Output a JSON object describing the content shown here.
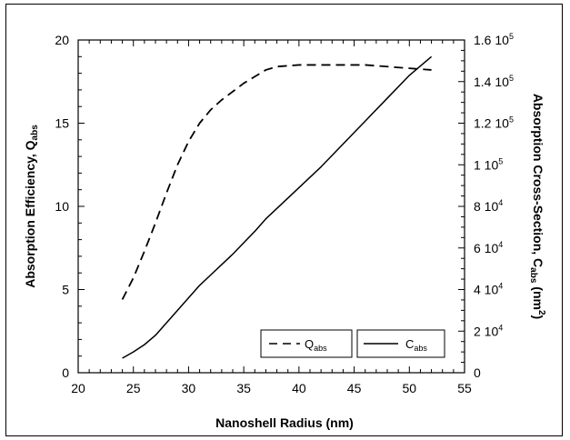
{
  "chart_data": {
    "type": "line",
    "x_axis": {
      "label": "Nanoshell Radius (nm)",
      "range": [
        20,
        55
      ],
      "ticks": [
        "20",
        "25",
        "30",
        "35",
        "40",
        "45",
        "50",
        "55"
      ]
    },
    "y_axis_left": {
      "label_main": "Absorption Efficiency, Q",
      "label_sub": "abs",
      "range": [
        0,
        20
      ],
      "ticks": [
        "0",
        "5",
        "10",
        "15",
        "20"
      ]
    },
    "y_axis_right": {
      "label_main": "Absorption Cross-Section, C",
      "label_sub": "abs",
      "label_unit_open": " (nm",
      "label_unit_sup": "2",
      "label_unit_close": ")",
      "range": [
        0,
        160000
      ],
      "ticks": [
        {
          "mantissa": "0",
          "exp": ""
        },
        {
          "mantissa": "2 10",
          "exp": "4"
        },
        {
          "mantissa": "4 10",
          "exp": "4"
        },
        {
          "mantissa": "6 10",
          "exp": "4"
        },
        {
          "mantissa": "8 10",
          "exp": "4"
        },
        {
          "mantissa": "1 10",
          "exp": "5"
        },
        {
          "mantissa": "1.2 10",
          "exp": "5"
        },
        {
          "mantissa": "1.4 10",
          "exp": "5"
        },
        {
          "mantissa": "1.6 10",
          "exp": "5"
        }
      ]
    },
    "series": [
      {
        "name_main": "Q",
        "name_sub": "abs",
        "axis": "left",
        "style": "dashed",
        "x": [
          24,
          25,
          26,
          27,
          28,
          29,
          30,
          31,
          32,
          33,
          34,
          35,
          36,
          37,
          38,
          40,
          42,
          44,
          45,
          46,
          48,
          50,
          52
        ],
        "y": [
          4.4,
          5.7,
          7.3,
          9.0,
          10.8,
          12.5,
          13.9,
          15.0,
          15.8,
          16.4,
          16.9,
          17.4,
          17.8,
          18.2,
          18.4,
          18.5,
          18.5,
          18.5,
          18.5,
          18.5,
          18.4,
          18.3,
          18.2
        ]
      },
      {
        "name_main": "C",
        "name_sub": "abs",
        "axis": "right",
        "style": "solid",
        "x": [
          24,
          25,
          26,
          27,
          28,
          29,
          30,
          31,
          32,
          33,
          34,
          35,
          36,
          37,
          38,
          40,
          42,
          44,
          46,
          48,
          50,
          52
        ],
        "y": [
          7000,
          10000,
          13500,
          18000,
          24000,
          30000,
          36000,
          42000,
          47000,
          52000,
          57000,
          62500,
          68000,
          74000,
          79000,
          89000,
          99000,
          110000,
          121000,
          132000,
          143000,
          152000
        ]
      }
    ]
  }
}
